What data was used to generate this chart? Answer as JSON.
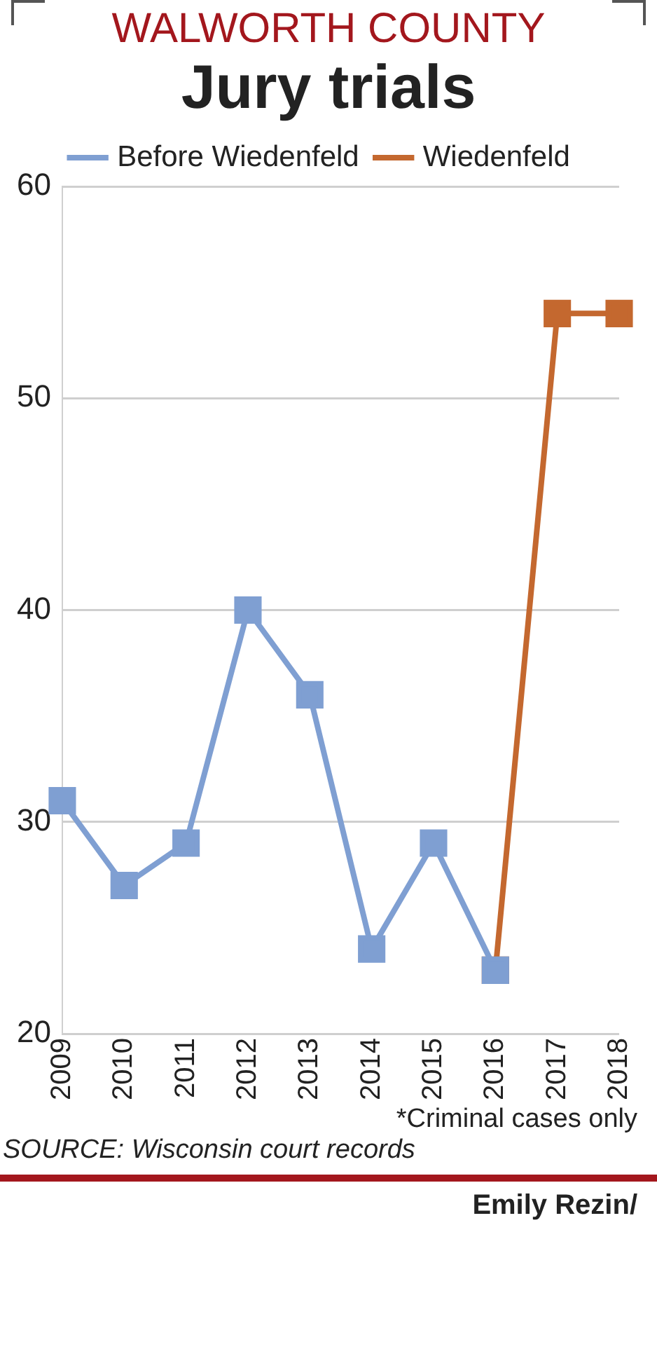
{
  "chart_data": {
    "type": "line",
    "subtitle": "WALWORTH COUNTY",
    "title": "Jury trials",
    "categories": [
      "2009",
      "2010",
      "2011",
      "2012",
      "2013",
      "2014",
      "2015",
      "2016",
      "2017",
      "2018"
    ],
    "series": [
      {
        "name": "Before Wiedenfeld",
        "color": "#7f9fd2",
        "values": [
          31,
          27,
          29,
          40,
          36,
          24,
          29,
          23,
          null,
          null
        ]
      },
      {
        "name": "Wiedenfeld",
        "color": "#c4682f",
        "values": [
          null,
          null,
          null,
          null,
          null,
          null,
          null,
          23,
          54,
          54
        ]
      }
    ],
    "ylim": [
      20,
      60
    ],
    "yticks": [
      20,
      30,
      40,
      50,
      60
    ],
    "grid": "y",
    "legend": "top",
    "marker": "square",
    "line_style": "solid",
    "annotations": [
      "*Criminal cases only",
      "SOURCE: Wisconsin court records",
      "Emily Rezin/"
    ]
  }
}
